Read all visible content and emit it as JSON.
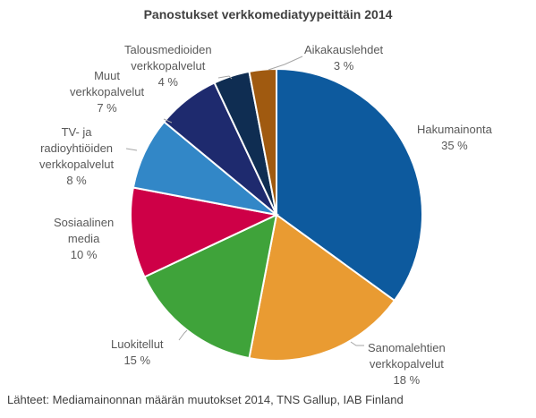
{
  "chart_data": {
    "type": "pie",
    "title": "Panostukset verkkomediatyypeittäin 2014",
    "slices": [
      {
        "label": [
          "Hakumainonta"
        ],
        "value": 35,
        "value_label": "35 %",
        "color": "#0D5A9E"
      },
      {
        "label": [
          "Sanomalehtien",
          "verkkopalvelut"
        ],
        "value": 18,
        "value_label": "18 %",
        "color": "#E99B32"
      },
      {
        "label": [
          "Luokitellut"
        ],
        "value": 15,
        "value_label": "15 %",
        "color": "#3FA33A"
      },
      {
        "label": [
          "Sosiaalinen",
          "media"
        ],
        "value": 10,
        "value_label": "10 %",
        "color": "#CE0047"
      },
      {
        "label": [
          "TV- ja",
          "radioyhtiöiden",
          "verkkopalvelut"
        ],
        "value": 8,
        "value_label": "8 %",
        "color": "#3287C7"
      },
      {
        "label": [
          "Muut",
          "verkkopalvelut"
        ],
        "value": 7,
        "value_label": "7 %",
        "color": "#1E2A6E"
      },
      {
        "label": [
          "Talousmedioiden",
          "verkkopalvelut"
        ],
        "value": 4,
        "value_label": "4 %",
        "color": "#0F2D52"
      },
      {
        "label": [
          "Aikakauslehdet"
        ],
        "value": 3,
        "value_label": "3 %",
        "color": "#A05A10"
      }
    ]
  },
  "source_note": "Lähteet: Mediamainonnan määrän muutokset 2014, TNS Gallup, IAB Finland"
}
